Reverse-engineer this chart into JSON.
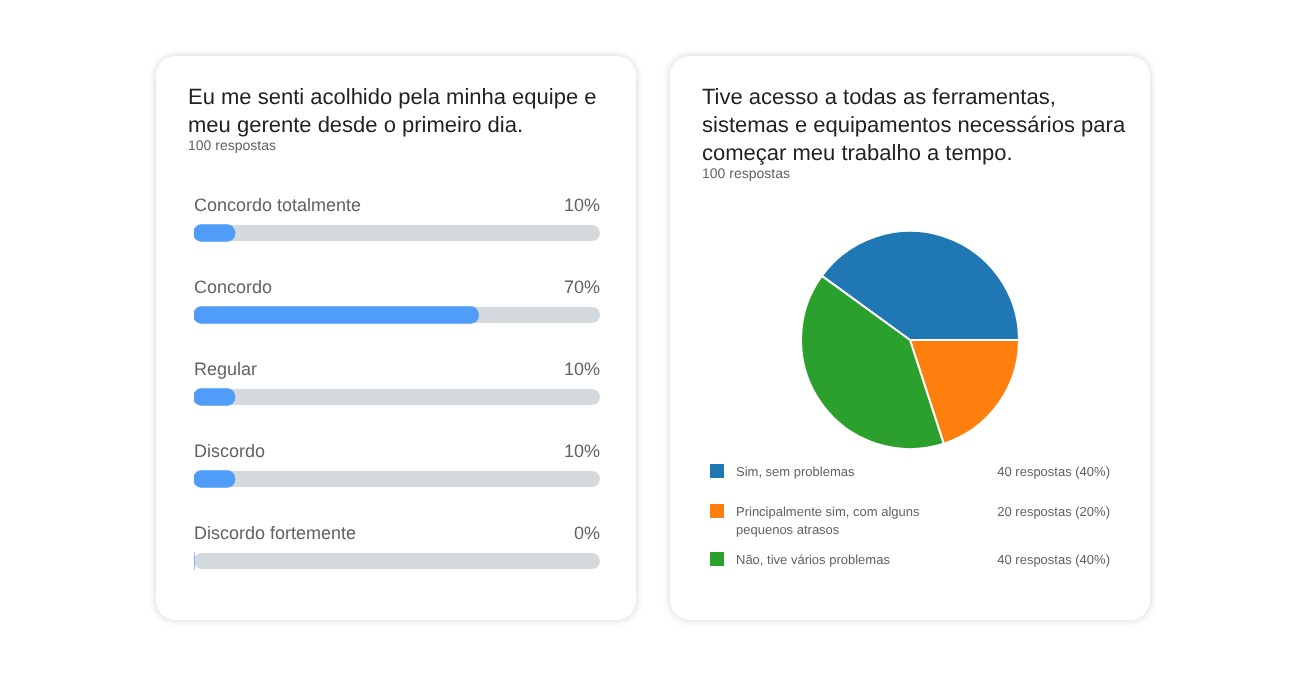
{
  "chart_data": [
    {
      "type": "bar",
      "orientation": "horizontal",
      "title": "Eu me senti acolhido pela minha equipe e meu gerente desde o primeiro dia.",
      "subtitle": "100 respostas",
      "categories": [
        "Concordo totalmente",
        "Concordo",
        "Regular",
        "Discordo",
        "Discordo fortemente"
      ],
      "values": [
        10,
        70,
        10,
        10,
        0
      ],
      "color": "#4f9cf9",
      "xlim": [
        0,
        100
      ],
      "value_labels": [
        "10%",
        "70%",
        "10%",
        "10%",
        "0%"
      ],
      "tick_labels": false,
      "legend": false
    },
    {
      "type": "pie",
      "title": "Tive acesso a todas as ferramentas, sistemas e equipamentos necessários para começar meu trabalho a tempo.",
      "subtitle": "100 respostas",
      "categories": [
        "Sim, sem problemas",
        "Principalmente sim, com alguns pequenos atrasos",
        "Não, tive vários problemas"
      ],
      "values": [
        40,
        20,
        40
      ],
      "colors": [
        "#1f77b4",
        "#ff7f0e",
        "#2ca02c"
      ],
      "value_labels": [
        "40 respostas (40%)",
        "20 respostas (20%)",
        "40 respostas (40%)"
      ],
      "legend": "bottom"
    }
  ]
}
